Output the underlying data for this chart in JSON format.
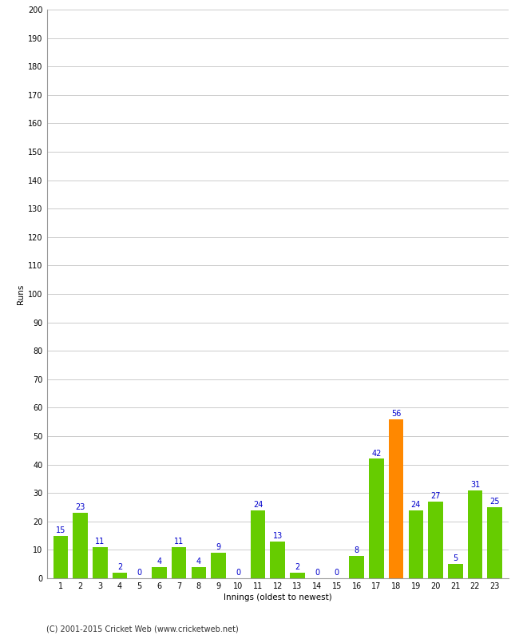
{
  "title": "",
  "xlabel": "Innings (oldest to newest)",
  "ylabel": "Runs",
  "innings": [
    1,
    2,
    3,
    4,
    5,
    6,
    7,
    8,
    9,
    10,
    11,
    12,
    13,
    14,
    15,
    16,
    17,
    18,
    19,
    20,
    21,
    22,
    23
  ],
  "values": [
    15,
    23,
    11,
    2,
    0,
    4,
    11,
    4,
    9,
    0,
    24,
    13,
    2,
    0,
    0,
    8,
    42,
    56,
    24,
    27,
    5,
    31,
    25
  ],
  "highlight_index": 17,
  "bar_color": "#66cc00",
  "highlight_color": "#ff8800",
  "label_color": "#0000cc",
  "bg_color": "#ffffff",
  "grid_color": "#cccccc",
  "ylim": [
    0,
    200
  ],
  "yticks": [
    0,
    10,
    20,
    30,
    40,
    50,
    60,
    70,
    80,
    90,
    100,
    110,
    120,
    130,
    140,
    150,
    160,
    170,
    180,
    190,
    200
  ],
  "footer": "(C) 2001-2015 Cricket Web (www.cricketweb.net)",
  "label_fontsize": 7,
  "axis_label_fontsize": 7.5,
  "tick_fontsize": 7,
  "footer_fontsize": 7
}
